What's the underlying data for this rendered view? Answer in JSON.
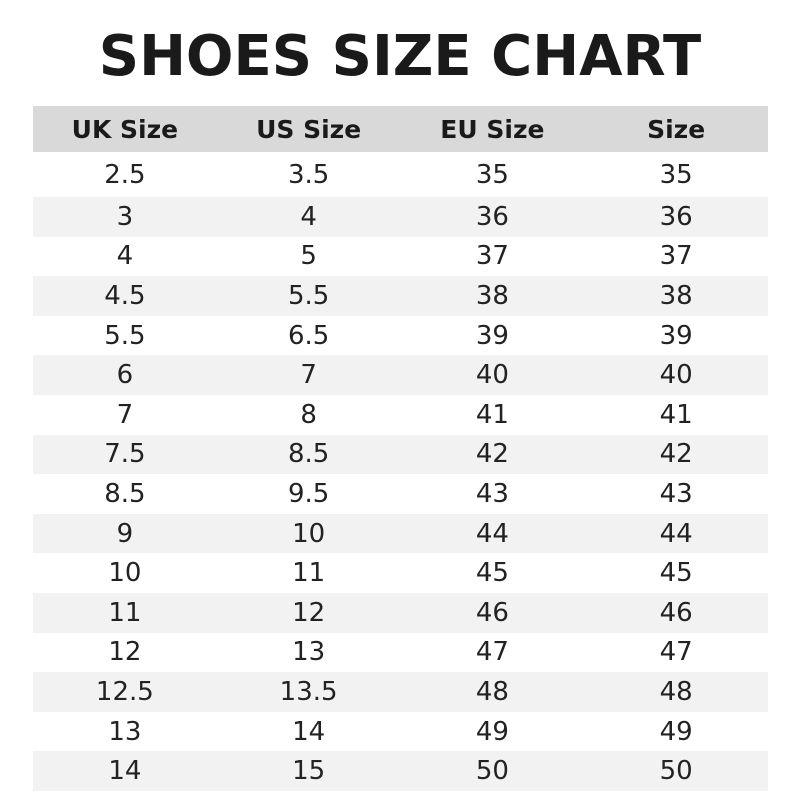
{
  "title": "SHOES SIZE CHART",
  "columns": [
    "UK Size",
    "US Size",
    "EU Size",
    "Size"
  ],
  "rows": [
    [
      "2.5",
      "3.5",
      "35",
      "35"
    ],
    [
      "3",
      "4",
      "36",
      "36"
    ],
    [
      "4",
      "5",
      "37",
      "37"
    ],
    [
      "4.5",
      "5.5",
      "38",
      "38"
    ],
    [
      "5.5",
      "6.5",
      "39",
      "39"
    ],
    [
      "6",
      "7",
      "40",
      "40"
    ],
    [
      "7",
      "8",
      "41",
      "41"
    ],
    [
      "7.5",
      "8.5",
      "42",
      "42"
    ],
    [
      "8.5",
      "9.5",
      "43",
      "43"
    ],
    [
      "9",
      "10",
      "44",
      "44"
    ],
    [
      "10",
      "11",
      "45",
      "45"
    ],
    [
      "11",
      "12",
      "46",
      "46"
    ],
    [
      "12",
      "13",
      "47",
      "47"
    ],
    [
      "12.5",
      "13.5",
      "48",
      "48"
    ],
    [
      "13",
      "14",
      "49",
      "49"
    ],
    [
      "14",
      "15",
      "50",
      "50"
    ]
  ],
  "colors": {
    "header_bg": "#d9d9d9",
    "alt_row_bg": "#f2f2f2",
    "text": "#222222"
  }
}
